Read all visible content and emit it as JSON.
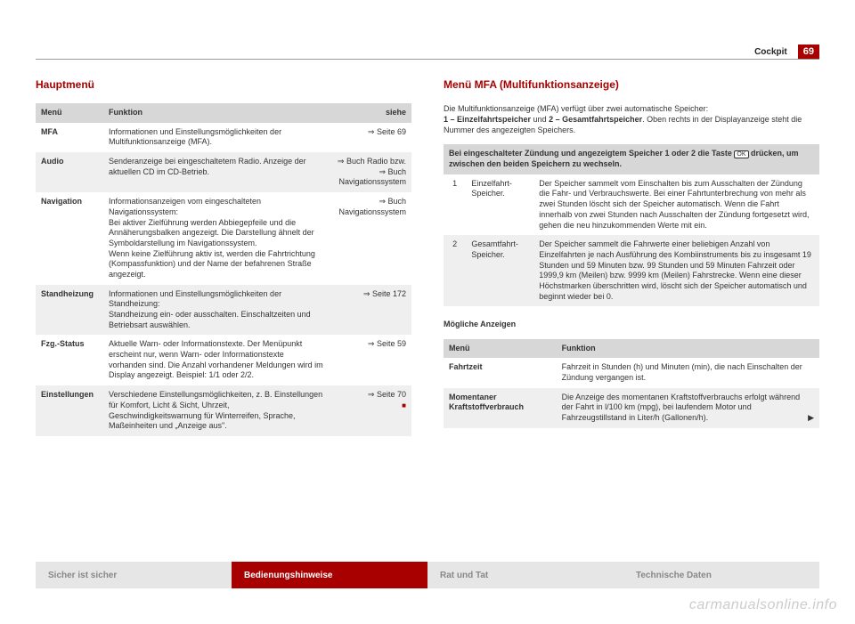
{
  "header": {
    "section": "Cockpit",
    "page": "69"
  },
  "left": {
    "title": "Hauptmenü",
    "th_menu": "Menü",
    "th_func": "Funktion",
    "th_see": "siehe",
    "rows": [
      {
        "menu": "MFA",
        "func": "Informationen und Einstellungsmöglichkeiten der Multifunktionsanzeige (MFA).",
        "see": "⇒ Seite 69"
      },
      {
        "menu": "Audio",
        "func": "Senderanzeige bei eingeschaltetem Radio. Anzeige der aktuellen CD im CD-Betrieb.",
        "see": "⇒ Buch Radio bzw. ⇒ Buch Navigationssystem"
      },
      {
        "menu": "Navigation",
        "func": "Informationsanzeigen vom eingeschalteten Navigationssystem:\nBei aktiver Zielführung werden Abbiegepfeile und die Annäherungsbalken angezeigt. Die Darstellung ähnelt der Symboldarstellung im Navigationssystem.\nWenn keine Zielführung aktiv ist, werden die Fahrtrichtung (Kompassfunktion) und der Name der befahrenen Straße angezeigt.",
        "see": "⇒ Buch Navigationssystem"
      },
      {
        "menu": "Standheizung",
        "func": "Informationen und Einstellungsmöglichkeiten der Standheizung:\nStandheizung ein- oder ausschalten. Einschaltzeiten und Betriebsart auswählen.",
        "see": "⇒ Seite 172"
      },
      {
        "menu": "Fzg.-Status",
        "func": "Aktuelle Warn- oder Informationstexte. Der Menüpunkt erscheint nur, wenn Warn- oder Informationstexte vorhanden sind. Die Anzahl vorhandener Meldungen wird im Display angezeigt. Beispiel: 1/1 oder 2/2.",
        "see": "⇒ Seite 59"
      },
      {
        "menu": "Einstellungen",
        "func": "Verschiedene Einstellungsmöglichkeiten, z. B. Einstellungen für Komfort, Licht & Sicht, Uhrzeit, Geschwindigkeitswarnung für Winterreifen, Sprache, Maßeinheiten und „Anzeige aus\".",
        "see": "⇒ Seite 70"
      }
    ]
  },
  "right": {
    "title": "Menü MFA (Multifunktionsanzeige)",
    "intro1": "Die Multifunktionsanzeige (MFA) verfügt über zwei automatische Speicher:",
    "intro2a": "1 – Einzelfahrtspeicher",
    "intro2b": " und ",
    "intro2c": "2 – Gesamtfahrtspeicher",
    "intro2d": ". Oben rechts in der Displayanzeige steht die Nummer des angezeigten Speichers.",
    "mem_head_a": "Bei eingeschalteter Zündung und angezeigtem Speicher 1 oder 2 die Taste ",
    "mem_head_b": " drücken, um zwischen den beiden Speichern zu wechseln.",
    "ok": "OK",
    "mem_rows": [
      {
        "idx": "1",
        "label": "Einzelfahrt-Speicher.",
        "desc": "Der Speicher sammelt vom Einschalten bis zum Ausschalten der Zündung die Fahr- und Verbrauchswerte. Bei einer Fahrtunterbrechung von mehr als zwei Stunden löscht sich der Speicher automatisch. Wenn die Fahrt innerhalb von zwei Stunden nach Ausschalten der Zündung fortgesetzt wird, gehen die neu hinzukommenden Werte mit ein."
      },
      {
        "idx": "2",
        "label": "Gesamtfahrt-Speicher.",
        "desc": "Der Speicher sammelt die Fahrwerte einer beliebigen Anzahl von Einzelfahrten je nach Ausführung des Kombiinstruments bis zu insgesamt 19 Stunden und 59 Minuten bzw. 99 Stunden und 59 Minuten Fahrzeit oder 1999,9 km (Meilen) bzw. 9999 km (Meilen) Fahrstrecke. Wenn eine dieser Höchstmarken überschritten wird, löscht sich der Speicher automatisch und beginnt wieder bei 0."
      }
    ],
    "disp_title": "Mögliche Anzeigen",
    "disp_th_menu": "Menü",
    "disp_th_func": "Funktion",
    "disp_rows": [
      {
        "menu": "Fahrtzeit",
        "func": "Fahrzeit in Stunden (h) und Minuten (min), die nach Einschalten der Zündung vergangen ist."
      },
      {
        "menu": "Momentaner Kraftstoffverbrauch",
        "func": "Die Anzeige des momentanen Kraftstoffverbrauchs erfolgt während der Fahrt in l/100 km (mpg), bei laufendem Motor und Fahrzeugstillstand in Liter/h (Gallonen/h)."
      }
    ]
  },
  "footer": {
    "tabs": [
      "Sicher ist sicher",
      "Bedienungshinweise",
      "Rat und Tat",
      "Technische Daten"
    ],
    "active_index": 1
  },
  "watermark": "carmanualsonline.info",
  "colors": {
    "accent": "#a80000",
    "header_bg": "#d7d7d7",
    "row_alt": "#efefef",
    "tab_inactive_bg": "#e6e6e6",
    "tab_inactive_fg": "#888888"
  }
}
